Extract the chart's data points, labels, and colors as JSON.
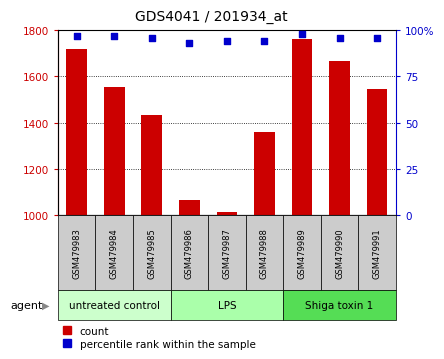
{
  "title": "GDS4041 / 201934_at",
  "samples": [
    "GSM479983",
    "GSM479984",
    "GSM479985",
    "GSM479986",
    "GSM479987",
    "GSM479988",
    "GSM479989",
    "GSM479990",
    "GSM479991"
  ],
  "counts": [
    1720,
    1555,
    1435,
    1065,
    1015,
    1360,
    1760,
    1665,
    1545
  ],
  "percentiles": [
    97,
    97,
    96,
    93,
    94,
    94,
    98,
    96,
    96
  ],
  "ylim_left": [
    1000,
    1800
  ],
  "ylim_right": [
    0,
    100
  ],
  "yticks_left": [
    1000,
    1200,
    1400,
    1600,
    1800
  ],
  "yticks_right": [
    0,
    25,
    50,
    75,
    100
  ],
  "groups": [
    {
      "label": "untreated control",
      "start": 0,
      "end": 3,
      "color": "#ccffcc"
    },
    {
      "label": "LPS",
      "start": 3,
      "end": 6,
      "color": "#aaffaa"
    },
    {
      "label": "Shiga toxin 1",
      "start": 6,
      "end": 9,
      "color": "#55dd55"
    }
  ],
  "bar_color": "#cc0000",
  "dot_color": "#0000cc",
  "sample_bg": "#cccccc",
  "agent_label": "agent",
  "legend_count_label": "count",
  "legend_pct_label": "percentile rank within the sample"
}
